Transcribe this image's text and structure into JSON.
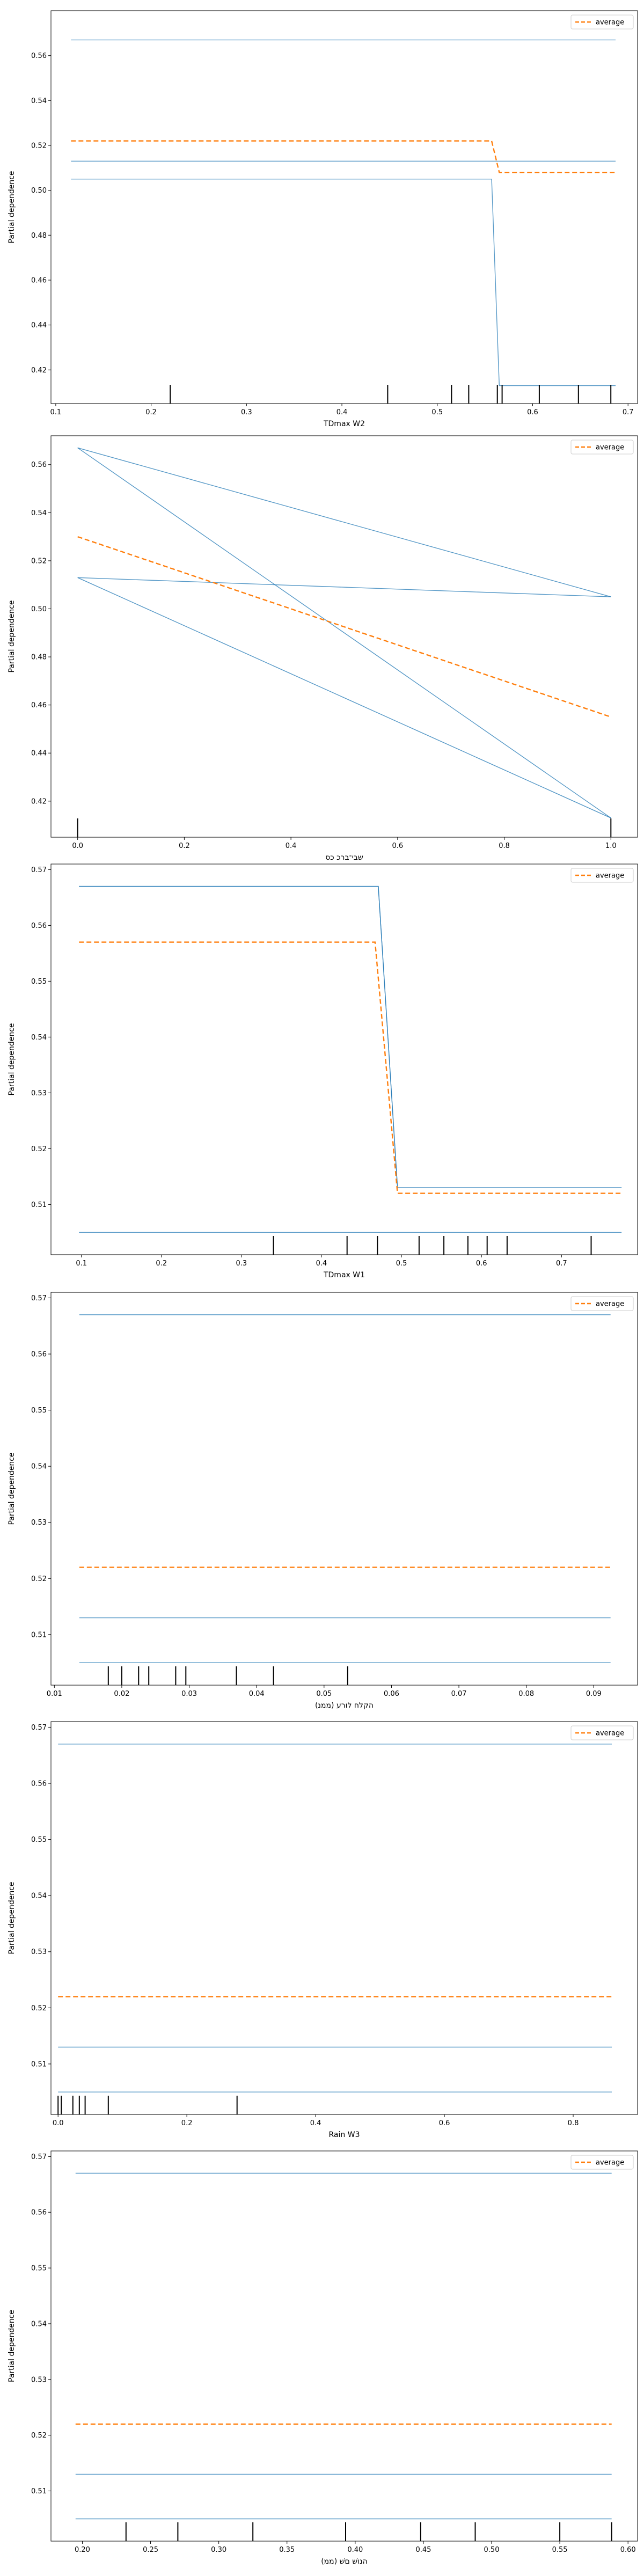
{
  "colors": {
    "ice": "#1f77b4",
    "average": "#ff7f0e",
    "rug": "#000000",
    "frame": "#000000"
  },
  "chart_data": [
    {
      "type": "line",
      "xlabel": "TDmax W2",
      "ylabel": "Partial dependence",
      "xlim": [
        0.095,
        0.71
      ],
      "ylim": [
        0.405,
        0.58
      ],
      "xticks": [
        0.1,
        0.2,
        0.3,
        0.4,
        0.5,
        0.6,
        0.7
      ],
      "yticks": [
        0.42,
        0.44,
        0.46,
        0.48,
        0.5,
        0.52,
        0.54,
        0.56
      ],
      "legend": {
        "label": "average",
        "position": "top-right"
      },
      "ice": [
        {
          "x": [
            0.116,
            0.687
          ],
          "y": [
            0.567,
            0.567
          ]
        },
        {
          "x": [
            0.116,
            0.687
          ],
          "y": [
            0.513,
            0.513
          ]
        },
        {
          "x": [
            0.116,
            0.557,
            0.565,
            0.687
          ],
          "y": [
            0.505,
            0.505,
            0.413,
            0.413
          ]
        }
      ],
      "average": {
        "x": [
          0.116,
          0.557,
          0.565,
          0.687
        ],
        "y": [
          0.522,
          0.522,
          0.508,
          0.508
        ]
      },
      "rug": [
        0.22,
        0.448,
        0.515,
        0.533,
        0.563,
        0.568,
        0.607,
        0.648,
        0.682
      ]
    },
    {
      "type": "line",
      "xlabel": "שבי־ברכ כס",
      "ylabel": "Partial dependence",
      "xlim": [
        -0.05,
        1.05
      ],
      "ylim": [
        0.405,
        0.572
      ],
      "xticks": [
        0.0,
        0.2,
        0.4,
        0.6,
        0.8,
        1.0
      ],
      "yticks": [
        0.42,
        0.44,
        0.46,
        0.48,
        0.5,
        0.52,
        0.54,
        0.56
      ],
      "legend": {
        "label": "average",
        "position": "top-right"
      },
      "ice": [
        {
          "x": [
            0.0,
            1.0
          ],
          "y": [
            0.567,
            0.505
          ]
        },
        {
          "x": [
            0.0,
            1.0
          ],
          "y": [
            0.567,
            0.413
          ]
        },
        {
          "x": [
            0.0,
            1.0
          ],
          "y": [
            0.513,
            0.505
          ]
        },
        {
          "x": [
            0.0,
            1.0
          ],
          "y": [
            0.513,
            0.413
          ]
        }
      ],
      "average": {
        "x": [
          0.0,
          1.0
        ],
        "y": [
          0.53,
          0.455
        ]
      },
      "rug": [
        0.0,
        1.0
      ]
    },
    {
      "type": "line",
      "xlabel": "TDmax W1",
      "ylabel": "Partial dependence",
      "xlim": [
        0.062,
        0.795
      ],
      "ylim": [
        0.501,
        0.571
      ],
      "xticks": [
        0.1,
        0.2,
        0.3,
        0.4,
        0.5,
        0.6,
        0.7
      ],
      "yticks": [
        0.51,
        0.52,
        0.53,
        0.54,
        0.55,
        0.56,
        0.57
      ],
      "legend": {
        "label": "average",
        "position": "top-right"
      },
      "ice": [
        {
          "x": [
            0.097,
            0.471,
            0.495,
            0.775
          ],
          "y": [
            0.567,
            0.567,
            0.513,
            0.513
          ]
        },
        {
          "x": [
            0.097,
            0.471,
            0.495,
            0.775
          ],
          "y": [
            0.567,
            0.567,
            0.513,
            0.513
          ]
        },
        {
          "x": [
            0.097,
            0.775
          ],
          "y": [
            0.505,
            0.505
          ]
        }
      ],
      "average": {
        "x": [
          0.097,
          0.467,
          0.495,
          0.775
        ],
        "y": [
          0.557,
          0.557,
          0.512,
          0.512
        ]
      },
      "rug": [
        0.34,
        0.432,
        0.47,
        0.522,
        0.553,
        0.583,
        0.607,
        0.632,
        0.737
      ]
    },
    {
      "type": "line",
      "xlabel": "(ממנ) הקלח לורע",
      "ylabel": "Partial dependence",
      "xlim": [
        0.0095,
        0.0965
      ],
      "ylim": [
        0.501,
        0.571
      ],
      "xticks": [
        0.01,
        0.02,
        0.03,
        0.04,
        0.05,
        0.06,
        0.07,
        0.08,
        0.09
      ],
      "yticks": [
        0.51,
        0.52,
        0.53,
        0.54,
        0.55,
        0.56,
        0.57
      ],
      "legend": {
        "label": "average",
        "position": "top-right"
      },
      "ice": [
        {
          "x": [
            0.0137,
            0.0925
          ],
          "y": [
            0.567,
            0.567
          ]
        },
        {
          "x": [
            0.0137,
            0.0925
          ],
          "y": [
            0.513,
            0.513
          ]
        },
        {
          "x": [
            0.0137,
            0.0925
          ],
          "y": [
            0.505,
            0.505
          ]
        }
      ],
      "average": {
        "x": [
          0.0137,
          0.0925
        ],
        "y": [
          0.522,
          0.522
        ]
      },
      "rug": [
        0.018,
        0.02,
        0.0225,
        0.024,
        0.028,
        0.0295,
        0.037,
        0.0425,
        0.0535
      ]
    },
    {
      "type": "line",
      "xlabel": "Rain W3",
      "ylabel": "Partial dependence",
      "xlim": [
        -0.011,
        0.9
      ],
      "ylim": [
        0.501,
        0.571
      ],
      "xticks": [
        0.0,
        0.2,
        0.4,
        0.6,
        0.8
      ],
      "yticks": [
        0.51,
        0.52,
        0.53,
        0.54,
        0.55,
        0.56,
        0.57
      ],
      "legend": {
        "label": "average",
        "position": "top-right"
      },
      "ice": [
        {
          "x": [
            0.0,
            0.86
          ],
          "y": [
            0.567,
            0.567
          ]
        },
        {
          "x": [
            0.0,
            0.86
          ],
          "y": [
            0.513,
            0.513
          ]
        },
        {
          "x": [
            0.0,
            0.86
          ],
          "y": [
            0.505,
            0.505
          ]
        }
      ],
      "average": {
        "x": [
          0.0,
          0.86
        ],
        "y": [
          0.522,
          0.522
        ]
      },
      "rug": [
        0.0,
        0.005,
        0.023,
        0.033,
        0.042,
        0.078,
        0.278
      ]
    },
    {
      "type": "line",
      "xlabel": "(ממ) הנושׁ םשׁ",
      "ylabel": "Partial dependence",
      "xlim": [
        0.177,
        0.607
      ],
      "ylim": [
        0.501,
        0.571
      ],
      "xticks": [
        0.2,
        0.25,
        0.3,
        0.35,
        0.4,
        0.45,
        0.5,
        0.55,
        0.6
      ],
      "yticks": [
        0.51,
        0.52,
        0.53,
        0.54,
        0.55,
        0.56,
        0.57
      ],
      "legend": {
        "label": "average",
        "position": "top-right"
      },
      "ice": [
        {
          "x": [
            0.195,
            0.588
          ],
          "y": [
            0.567,
            0.567
          ]
        },
        {
          "x": [
            0.195,
            0.588
          ],
          "y": [
            0.513,
            0.513
          ]
        },
        {
          "x": [
            0.195,
            0.588
          ],
          "y": [
            0.505,
            0.505
          ]
        }
      ],
      "average": {
        "x": [
          0.195,
          0.588
        ],
        "y": [
          0.522,
          0.522
        ]
      },
      "rug": [
        0.232,
        0.27,
        0.325,
        0.393,
        0.448,
        0.488,
        0.55,
        0.588
      ]
    }
  ]
}
